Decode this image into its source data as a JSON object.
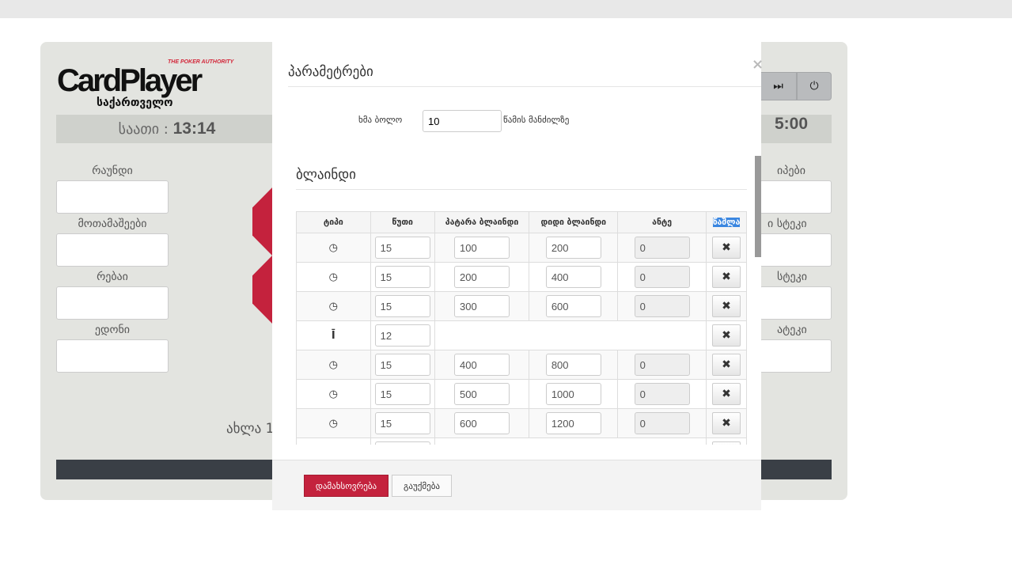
{
  "background": {
    "logo": {
      "main": "CardPlayer",
      "tagline": "THE POKER AUTHORITY",
      "country": "საქართველო"
    },
    "clock_label": "საათი :",
    "clock_value": "13:14",
    "timer_partial": "5:00",
    "controls": {
      "next_icon": "skip-forward-icon",
      "power_icon": "power-icon"
    },
    "left_fields": [
      "რაუნდი",
      "მოთამაშეები",
      "რებაი",
      "ედონი"
    ],
    "right_fields_partial": [
      "იპები",
      "ი სტეკი",
      "სტეკი",
      "ატეკი"
    ],
    "now_partial": "ახლა 1",
    "colors": {
      "accent": "#c4223d",
      "panel": "#e3e4e0",
      "dark_bar": "#3a3f46"
    }
  },
  "modal": {
    "title": "პარამეტრები",
    "close": "×",
    "sound": {
      "label": "ხმა ბოლო",
      "value": "10",
      "suffix": "წამის მანძილზე"
    },
    "blinds_title": "ბლაინდი",
    "columns": [
      "ტიპი",
      "წუთი",
      "პატარა ბლაინდი",
      "დიდი ბლაინდი",
      "ანტე",
      "წაშლა"
    ],
    "rows": [
      {
        "type": "clock",
        "minutes": "15",
        "small": "100",
        "big": "200",
        "ante": "0"
      },
      {
        "type": "clock",
        "minutes": "15",
        "small": "200",
        "big": "400",
        "ante": "0"
      },
      {
        "type": "clock",
        "minutes": "15",
        "small": "300",
        "big": "600",
        "ante": "0"
      },
      {
        "type": "break",
        "minutes": "12"
      },
      {
        "type": "clock",
        "minutes": "15",
        "small": "400",
        "big": "800",
        "ante": "0"
      },
      {
        "type": "clock",
        "minutes": "15",
        "small": "500",
        "big": "1000",
        "ante": "0"
      },
      {
        "type": "clock",
        "minutes": "15",
        "small": "600",
        "big": "1200",
        "ante": "0"
      },
      {
        "type": "break",
        "minutes": ""
      }
    ],
    "delete_icon": "✖",
    "save_label": "დამახსოვრება",
    "cancel_label": "გაუქმება"
  }
}
